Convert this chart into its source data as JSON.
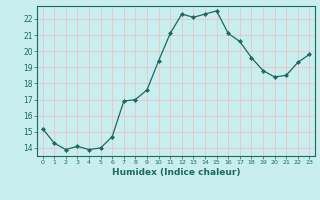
{
  "x": [
    0,
    1,
    2,
    3,
    4,
    5,
    6,
    7,
    8,
    9,
    10,
    11,
    12,
    13,
    14,
    15,
    16,
    17,
    18,
    19,
    20,
    21,
    22,
    23
  ],
  "y": [
    15.2,
    14.3,
    13.9,
    14.1,
    13.9,
    14.0,
    14.7,
    16.9,
    17.0,
    17.6,
    19.4,
    21.1,
    22.3,
    22.1,
    22.3,
    22.5,
    21.1,
    20.6,
    19.6,
    18.8,
    18.4,
    18.5,
    19.3,
    19.8
  ],
  "line_color": "#1a6b5a",
  "marker_color": "#1a6b5a",
  "bg_color": "#c8eef0",
  "grid_color": "#e8c8c8",
  "xlabel": "Humidex (Indice chaleur)",
  "ylabel_ticks": [
    14,
    15,
    16,
    17,
    18,
    19,
    20,
    21,
    22
  ],
  "xlim": [
    -0.5,
    23.5
  ],
  "ylim": [
    13.5,
    22.8
  ]
}
